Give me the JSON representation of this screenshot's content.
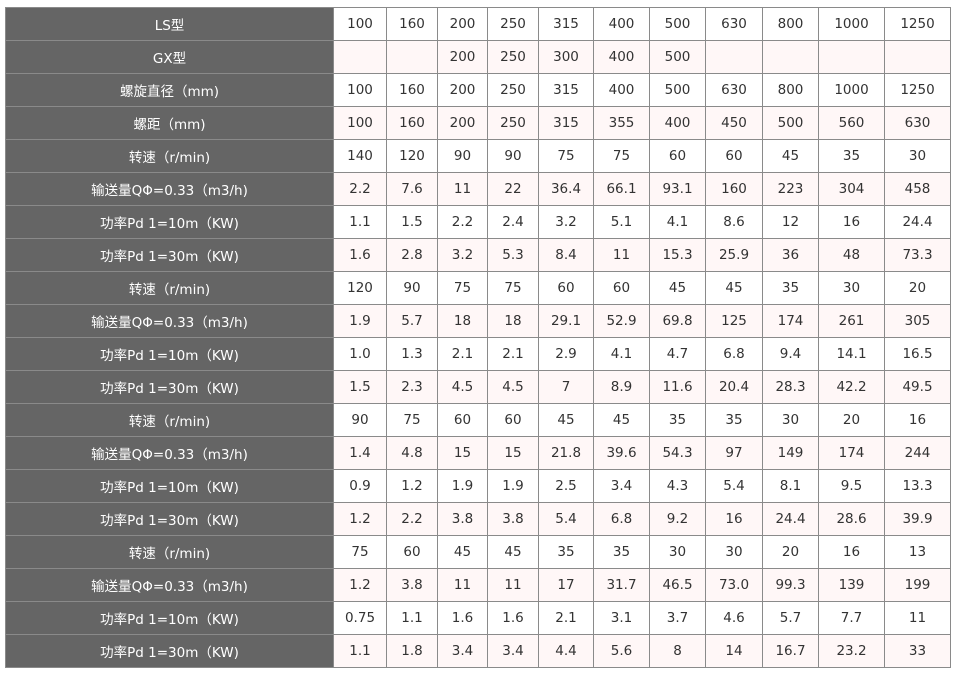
{
  "colors": {
    "header_bg": "#656565",
    "header_text": "#ffffff",
    "alt_row_bg": "#fff7f7",
    "border": "#8a8a8a"
  },
  "rows": [
    {
      "label": "LS型",
      "values": [
        "100",
        "160",
        "200",
        "250",
        "315",
        "400",
        "500",
        "630",
        "800",
        "1000",
        "1250"
      ]
    },
    {
      "label": "GX型",
      "values": [
        "",
        "",
        "200",
        "250",
        "300",
        "400",
        "500",
        "",
        "",
        "",
        ""
      ]
    },
    {
      "label": "螺旋直径（mm)",
      "values": [
        "100",
        "160",
        "200",
        "250",
        "315",
        "400",
        "500",
        "630",
        "800",
        "1000",
        "1250"
      ]
    },
    {
      "label": "螺距（mm)",
      "values": [
        "100",
        "160",
        "200",
        "250",
        "315",
        "355",
        "400",
        "450",
        "500",
        "560",
        "630"
      ]
    },
    {
      "label": "转速（r/min)",
      "values": [
        "140",
        "120",
        "90",
        "90",
        "75",
        "75",
        "60",
        "60",
        "45",
        "35",
        "30"
      ]
    },
    {
      "label": "输送量QΦ=0.33（m3/h)",
      "values": [
        "2.2",
        "7.6",
        "11",
        "22",
        "36.4",
        "66.1",
        "93.1",
        "160",
        "223",
        "304",
        "458"
      ]
    },
    {
      "label": "功率Pd 1=10m（KW)",
      "values": [
        "1.1",
        "1.5",
        "2.2",
        "2.4",
        "3.2",
        "5.1",
        "4.1",
        "8.6",
        "12",
        "16",
        "24.4"
      ]
    },
    {
      "label": "功率Pd 1=30m（KW)",
      "values": [
        "1.6",
        "2.8",
        "3.2",
        "5.3",
        "8.4",
        "11",
        "15.3",
        "25.9",
        "36",
        "48",
        "73.3"
      ]
    },
    {
      "label": "转速（r/min)",
      "values": [
        "120",
        "90",
        "75",
        "75",
        "60",
        "60",
        "45",
        "45",
        "35",
        "30",
        "20"
      ]
    },
    {
      "label": "输送量QΦ=0.33（m3/h)",
      "values": [
        "1.9",
        "5.7",
        "18",
        "18",
        "29.1",
        "52.9",
        "69.8",
        "125",
        "174",
        "261",
        "305"
      ]
    },
    {
      "label": "功率Pd 1=10m（KW)",
      "values": [
        "1.0",
        "1.3",
        "2.1",
        "2.1",
        "2.9",
        "4.1",
        "4.7",
        "6.8",
        "9.4",
        "14.1",
        "16.5"
      ]
    },
    {
      "label": "功率Pd 1=30m（KW)",
      "values": [
        "1.5",
        "2.3",
        "4.5",
        "4.5",
        "7",
        "8.9",
        "11.6",
        "20.4",
        "28.3",
        "42.2",
        "49.5"
      ]
    },
    {
      "label": "转速（r/min)",
      "values": [
        "90",
        "75",
        "60",
        "60",
        "45",
        "45",
        "35",
        "35",
        "30",
        "20",
        "16"
      ]
    },
    {
      "label": "输送量QΦ=0.33（m3/h)",
      "values": [
        "1.4",
        "4.8",
        "15",
        "15",
        "21.8",
        "39.6",
        "54.3",
        "97",
        "149",
        "174",
        "244"
      ]
    },
    {
      "label": "功率Pd 1=10m（KW)",
      "values": [
        "0.9",
        "1.2",
        "1.9",
        "1.9",
        "2.5",
        "3.4",
        "4.3",
        "5.4",
        "8.1",
        "9.5",
        "13.3"
      ]
    },
    {
      "label": "功率Pd 1=30m（KW)",
      "values": [
        "1.2",
        "2.2",
        "3.8",
        "3.8",
        "5.4",
        "6.8",
        "9.2",
        "16",
        "24.4",
        "28.6",
        "39.9"
      ]
    },
    {
      "label": "转速（r/min)",
      "values": [
        "75",
        "60",
        "45",
        "45",
        "35",
        "35",
        "30",
        "30",
        "20",
        "16",
        "13"
      ]
    },
    {
      "label": "输送量QΦ=0.33（m3/h)",
      "values": [
        "1.2",
        "3.8",
        "11",
        "11",
        "17",
        "31.7",
        "46.5",
        "73.0",
        "99.3",
        "139",
        "199"
      ]
    },
    {
      "label": "功率Pd 1=10m（KW)",
      "values": [
        "0.75",
        "1.1",
        "1.6",
        "1.6",
        "2.1",
        "3.1",
        "3.7",
        "4.6",
        "5.7",
        "7.7",
        "11"
      ]
    },
    {
      "label": "功率Pd 1=30m（KW)",
      "values": [
        "1.1",
        "1.8",
        "3.4",
        "3.4",
        "4.4",
        "5.6",
        "8",
        "14",
        "16.7",
        "23.2",
        "33"
      ]
    }
  ]
}
